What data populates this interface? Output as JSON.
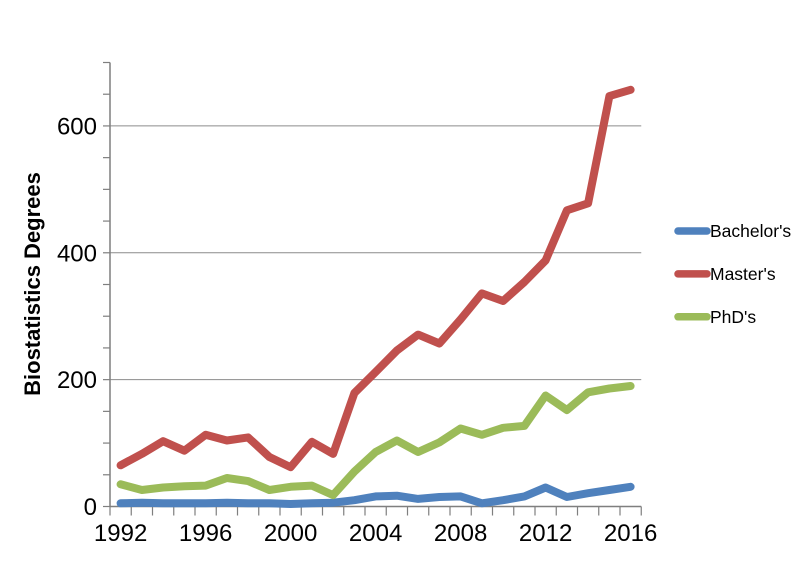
{
  "chart_data": {
    "type": "line",
    "title": "",
    "xlabel": "",
    "ylabel": "Biostatistics Degrees",
    "x": [
      1992,
      1993,
      1994,
      1995,
      1996,
      1997,
      1998,
      1999,
      2000,
      2001,
      2002,
      2003,
      2004,
      2005,
      2006,
      2007,
      2008,
      2009,
      2010,
      2011,
      2012,
      2013,
      2014,
      2015,
      2016
    ],
    "x_tick_labels": [
      "1992",
      "1996",
      "2000",
      "2004",
      "2008",
      "2012",
      "2016"
    ],
    "y_tick_labels": [
      "0",
      "200",
      "400",
      "600"
    ],
    "y_ticks": [
      0,
      200,
      400,
      600
    ],
    "y_minor_tick_step": 50,
    "ylim": [
      0,
      700
    ],
    "grid": "horizontal-major",
    "legend_position": "right",
    "series": [
      {
        "name": "Bachelor's",
        "color": "#4F81BD",
        "values": [
          5,
          6,
          5,
          5,
          5,
          6,
          5,
          5,
          4,
          5,
          6,
          10,
          16,
          17,
          12,
          15,
          16,
          5,
          10,
          16,
          30,
          15,
          21,
          26,
          31
        ]
      },
      {
        "name": "Master's",
        "color": "#C0504D",
        "values": [
          65,
          83,
          103,
          88,
          113,
          104,
          109,
          78,
          62,
          102,
          83,
          179,
          212,
          246,
          271,
          257,
          295,
          336,
          324,
          354,
          388,
          467,
          478,
          647,
          657
        ]
      },
      {
        "name": "PhD's",
        "color": "#9BBB59",
        "values": [
          35,
          26,
          30,
          32,
          33,
          45,
          40,
          26,
          31,
          33,
          18,
          55,
          86,
          104,
          86,
          101,
          123,
          113,
          124,
          127,
          175,
          152,
          180,
          186,
          190
        ]
      }
    ],
    "colors": {
      "background": "#FFFFFF",
      "gridline": "#8C8C8C",
      "axis": "#7F7F7F",
      "tick": "#7F7F7F",
      "text": "#000000"
    }
  }
}
